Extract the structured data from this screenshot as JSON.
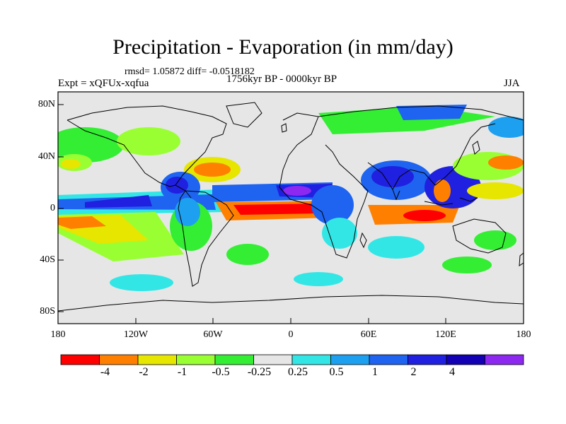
{
  "title": "Precipitation - Evaporation (in mm/day)",
  "stats": "rmsd= 1.05872 diff= -0.0518182",
  "experiment": "Expt = xQFUx-xqfua",
  "period": "1756kyr BP - 0000kyr BP",
  "season": "JJA",
  "lat_labels": [
    "80N",
    "40N",
    "0",
    "40S",
    "80S"
  ],
  "lon_labels": [
    "180",
    "120W",
    "60W",
    "0",
    "60E",
    "120E",
    "180"
  ],
  "colorbar": {
    "colors": [
      "#ff0000",
      "#ff8000",
      "#e6e600",
      "#99ff33",
      "#33ee33",
      "#e6e6e6",
      "#33e6e6",
      "#1ea0f0",
      "#1e64f0",
      "#2020e0",
      "#1400b4",
      "#8c28f0"
    ],
    "labels": [
      "-4",
      "-2",
      "-1",
      "-0.5",
      "-0.25",
      "0.25",
      "0.5",
      "1",
      "2",
      "4"
    ]
  },
  "background_color": "#e6e6e6"
}
